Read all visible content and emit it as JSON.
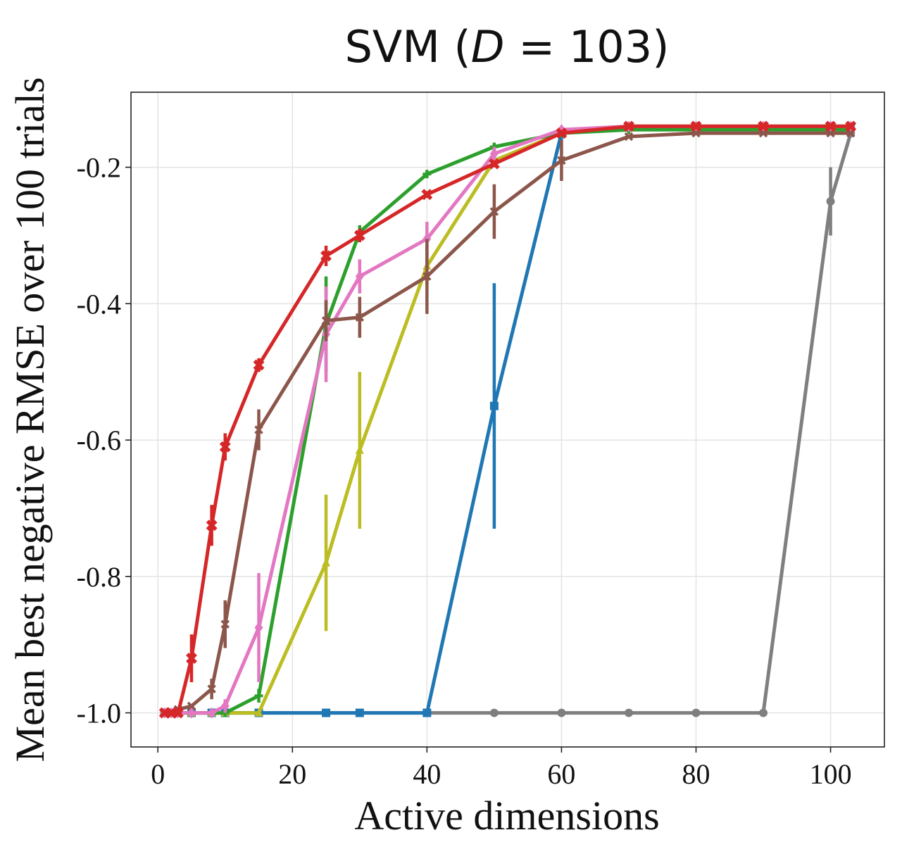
{
  "chart_data": {
    "type": "line",
    "title": {
      "prefix": "SVM (",
      "var": "D",
      "suffix": " = 103)"
    },
    "xlabel": "Active dimensions",
    "ylabel": "Mean best negative RMSE over 100 trials",
    "xlim": [
      -4,
      108
    ],
    "ylim": [
      -1.05,
      -0.09
    ],
    "xticks": [
      0,
      20,
      40,
      60,
      80,
      100
    ],
    "yticks": [
      -1.0,
      -0.8,
      -0.6,
      -0.4,
      -0.2
    ],
    "ytick_labels": [
      "-1.0",
      "-0.8",
      "-0.6",
      "-0.4",
      "-0.2"
    ],
    "grid": true,
    "series": [
      {
        "id": "gray",
        "color": "#7f7f7f",
        "marker": "circle",
        "x": [
          1,
          2,
          3,
          5,
          8,
          10,
          15,
          25,
          30,
          40,
          50,
          60,
          70,
          80,
          90,
          100,
          103
        ],
        "y": [
          -1.0,
          -1.0,
          -1.0,
          -1.0,
          -1.0,
          -1.0,
          -1.0,
          -1.0,
          -1.0,
          -1.0,
          -1.0,
          -1.0,
          -1.0,
          -1.0,
          -1.0,
          -0.25,
          -0.15
        ],
        "err": [
          0,
          0,
          0,
          0,
          0,
          0,
          0,
          0,
          0,
          0,
          0,
          0,
          0,
          0,
          0,
          0.05,
          0
        ]
      },
      {
        "id": "blue",
        "color": "#1f77b4",
        "marker": "square",
        "x": [
          1,
          2,
          3,
          5,
          8,
          10,
          15,
          25,
          30,
          40,
          50,
          60,
          70,
          80,
          90,
          100,
          103
        ],
        "y": [
          -1.0,
          -1.0,
          -1.0,
          -1.0,
          -1.0,
          -1.0,
          -1.0,
          -1.0,
          -1.0,
          -1.0,
          -0.55,
          -0.15,
          -0.14,
          -0.14,
          -0.14,
          -0.14,
          -0.14
        ],
        "err": [
          0,
          0,
          0,
          0,
          0,
          0,
          0,
          0,
          0,
          0,
          0.18,
          0.01,
          0,
          0,
          0,
          0,
          0
        ]
      },
      {
        "id": "olive",
        "color": "#bcbd22",
        "marker": "triangle",
        "x": [
          1,
          2,
          3,
          5,
          8,
          10,
          15,
          25,
          30,
          40,
          50,
          60,
          70,
          80,
          90,
          100,
          103
        ],
        "y": [
          -1.0,
          -1.0,
          -1.0,
          -1.0,
          -1.0,
          -1.0,
          -1.0,
          -0.78,
          -0.615,
          -0.345,
          -0.19,
          -0.15,
          -0.14,
          -0.14,
          -0.14,
          -0.14,
          -0.14
        ],
        "err": [
          0,
          0,
          0,
          0,
          0,
          0,
          0,
          0.1,
          0.115,
          0.03,
          0.01,
          0,
          0,
          0,
          0,
          0,
          0
        ]
      },
      {
        "id": "green",
        "color": "#2ca02c",
        "marker": "plus",
        "x": [
          1,
          2,
          3,
          5,
          8,
          10,
          15,
          25,
          30,
          40,
          50,
          60,
          70,
          80,
          90,
          100,
          103
        ],
        "y": [
          -1.0,
          -1.0,
          -1.0,
          -1.0,
          -1.0,
          -1.0,
          -0.975,
          -0.43,
          -0.295,
          -0.21,
          -0.17,
          -0.15,
          -0.145,
          -0.145,
          -0.145,
          -0.145,
          -0.145
        ],
        "err": [
          0,
          0,
          0,
          0,
          0,
          0,
          0.01,
          0.07,
          0.01,
          0.005,
          0.005,
          0,
          0,
          0,
          0,
          0,
          0
        ]
      },
      {
        "id": "pink",
        "color": "#e377c2",
        "marker": "diamond",
        "x": [
          1,
          2,
          3,
          5,
          8,
          10,
          15,
          25,
          30,
          40,
          50,
          60,
          70,
          80,
          90,
          100,
          103
        ],
        "y": [
          -1.0,
          -1.0,
          -1.0,
          -1.0,
          -1.0,
          -0.99,
          -0.875,
          -0.445,
          -0.36,
          -0.305,
          -0.18,
          -0.145,
          -0.14,
          -0.14,
          -0.14,
          -0.14,
          -0.14
        ],
        "err": [
          0,
          0,
          0,
          0,
          0,
          0.01,
          0.08,
          0.07,
          0.025,
          0.025,
          0.01,
          0,
          0,
          0,
          0,
          0,
          0
        ]
      },
      {
        "id": "brown",
        "color": "#8c564b",
        "marker": "x",
        "x": [
          1,
          2,
          3,
          5,
          8,
          10,
          15,
          25,
          30,
          40,
          50,
          60,
          70,
          80,
          90,
          100,
          103
        ],
        "y": [
          -1.0,
          -1.0,
          -0.995,
          -0.99,
          -0.965,
          -0.87,
          -0.585,
          -0.425,
          -0.42,
          -0.36,
          -0.265,
          -0.19,
          -0.155,
          -0.15,
          -0.15,
          -0.15,
          -0.15
        ],
        "err": [
          0,
          0,
          0,
          0,
          0.015,
          0.035,
          0.03,
          0.03,
          0.03,
          0.055,
          0.04,
          0.03,
          0,
          0,
          0,
          0,
          0
        ]
      },
      {
        "id": "red",
        "color": "#d62728",
        "marker": "filled-x",
        "x": [
          1,
          2,
          3,
          5,
          8,
          10,
          15,
          25,
          30,
          40,
          50,
          60,
          70,
          80,
          90,
          100,
          103
        ],
        "y": [
          -1.0,
          -1.0,
          -1.0,
          -0.92,
          -0.725,
          -0.61,
          -0.49,
          -0.33,
          -0.3,
          -0.24,
          -0.195,
          -0.15,
          -0.14,
          -0.14,
          -0.14,
          -0.14,
          -0.14
        ],
        "err": [
          0,
          0,
          0,
          0.035,
          0.03,
          0.02,
          0.01,
          0.015,
          0.01,
          0.005,
          0.005,
          0,
          0,
          0,
          0,
          0,
          0
        ]
      }
    ]
  }
}
